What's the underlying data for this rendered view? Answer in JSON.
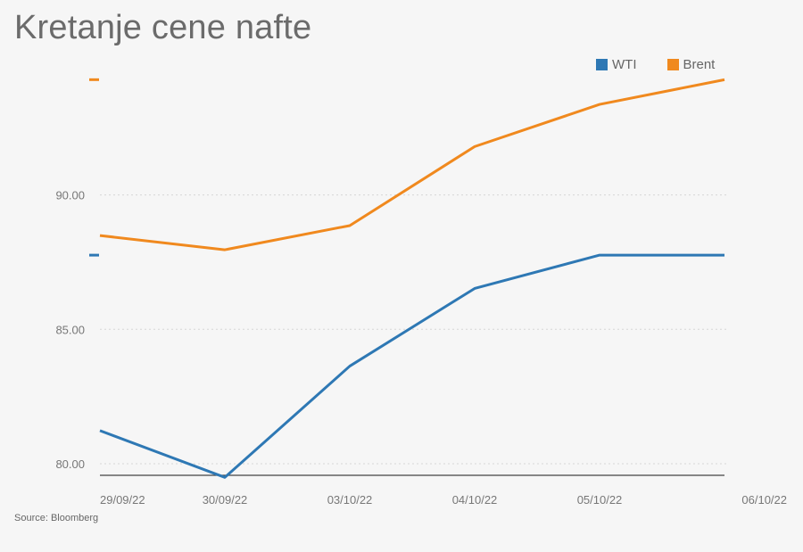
{
  "title": "Kretanje cene nafte",
  "source": "Source: Bloomberg",
  "colors": {
    "WTI": "#2e78b4",
    "Brent": "#f0891e",
    "grid": "#d6d6d6",
    "axis": "#444444"
  },
  "chart_data": {
    "type": "line",
    "title": "Kretanje cene nafte",
    "x": [
      "29/09/22",
      "30/09/22",
      "03/10/22",
      "04/10/22",
      "05/10/22",
      "06/10/22"
    ],
    "y_ticks": [
      "80.00",
      "85.00",
      "90.00"
    ],
    "ylim": [
      79.6,
      94.6
    ],
    "grid": true,
    "legend_position": "top-right",
    "series": [
      {
        "name": "WTI",
        "values": [
          81.23,
          79.49,
          83.63,
          86.52,
          87.76,
          87.76
        ]
      },
      {
        "name": "Brent",
        "values": [
          88.49,
          87.96,
          88.86,
          91.8,
          93.37,
          94.29
        ]
      }
    ],
    "last_value_markers": [
      {
        "series": "Brent",
        "value": 94.29
      },
      {
        "series": "WTI",
        "value": 87.76
      }
    ]
  }
}
